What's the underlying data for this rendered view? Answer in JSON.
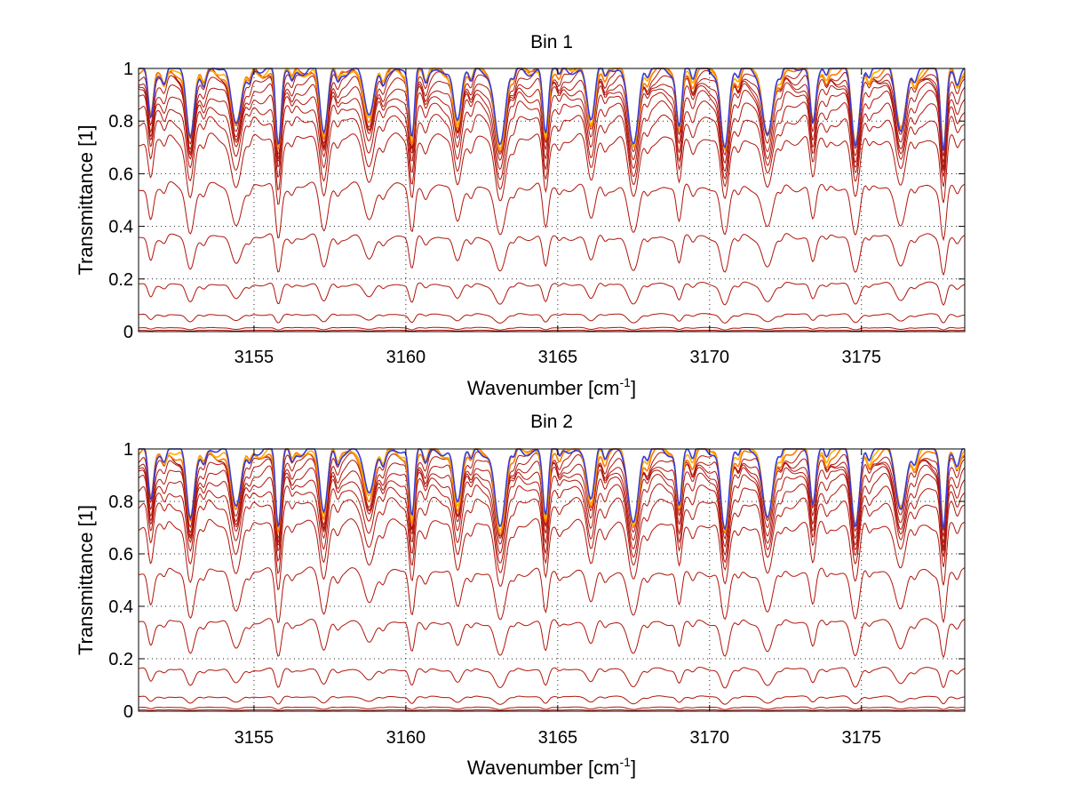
{
  "chart_data": [
    {
      "type": "line",
      "title": "Bin 1",
      "xlabel": "Wavenumber [cm",
      "xlabel_sup": "-1",
      "xlabel_end": "]",
      "ylabel": "Transmittance [1]",
      "xlim": [
        3151.2,
        3178.4
      ],
      "ylim": [
        0,
        1
      ],
      "xticks": [
        3155,
        3160,
        3165,
        3170,
        3175
      ],
      "xtick_labels": [
        "3155",
        "3160",
        "3165",
        "3170",
        "3175"
      ],
      "yticks": [
        0,
        0.2,
        0.4,
        0.6,
        0.8,
        1
      ],
      "ytick_labels": [
        "0",
        "0.2",
        "0.4",
        "0.6",
        "0.8",
        "1"
      ],
      "grid": "dotted",
      "series_baselines": [
        0.005,
        0.015,
        0.065,
        0.18,
        0.36,
        0.55,
        0.73,
        0.8,
        0.85,
        0.89,
        0.92,
        0.945,
        0.965,
        0.98,
        0.99,
        0.996,
        1.0
      ],
      "absorption_lines_cm-1": [
        3151.6,
        3152.9,
        3154.4,
        3155.8,
        3157.3,
        3158.8,
        3160.2,
        3161.7,
        3163.1,
        3164.6,
        3166.1,
        3167.5,
        3169.0,
        3170.5,
        3171.9,
        3173.4,
        3174.8,
        3176.3,
        3177.7
      ],
      "line_color": "#b0150b",
      "top_line_colors": [
        "#ff7a00",
        "#ffb000",
        "#3a3ad8"
      ]
    },
    {
      "type": "line",
      "title": "Bin 2",
      "xlabel": "Wavenumber [cm",
      "xlabel_sup": "-1",
      "xlabel_end": "]",
      "ylabel": "Transmittance [1]",
      "xlim": [
        3151.2,
        3178.4
      ],
      "ylim": [
        0,
        1
      ],
      "xticks": [
        3155,
        3160,
        3165,
        3170,
        3175
      ],
      "xtick_labels": [
        "3155",
        "3160",
        "3165",
        "3170",
        "3175"
      ],
      "yticks": [
        0,
        0.2,
        0.4,
        0.6,
        0.8,
        1
      ],
      "ytick_labels": [
        "0",
        "0.2",
        "0.4",
        "0.6",
        "0.8",
        "1"
      ],
      "grid": "dotted",
      "series_baselines": [
        0.005,
        0.015,
        0.055,
        0.16,
        0.34,
        0.53,
        0.71,
        0.79,
        0.84,
        0.88,
        0.91,
        0.935,
        0.955,
        0.97,
        0.985,
        0.995,
        1.0
      ],
      "absorption_lines_cm-1": [
        3151.6,
        3152.9,
        3154.4,
        3155.8,
        3157.3,
        3158.8,
        3160.2,
        3161.7,
        3163.1,
        3164.6,
        3166.1,
        3167.5,
        3169.0,
        3170.5,
        3171.9,
        3173.4,
        3174.8,
        3176.3,
        3177.7
      ],
      "line_color": "#b0150b",
      "top_line_colors": [
        "#ff7a00",
        "#ffb000",
        "#3a3ad8"
      ]
    }
  ]
}
